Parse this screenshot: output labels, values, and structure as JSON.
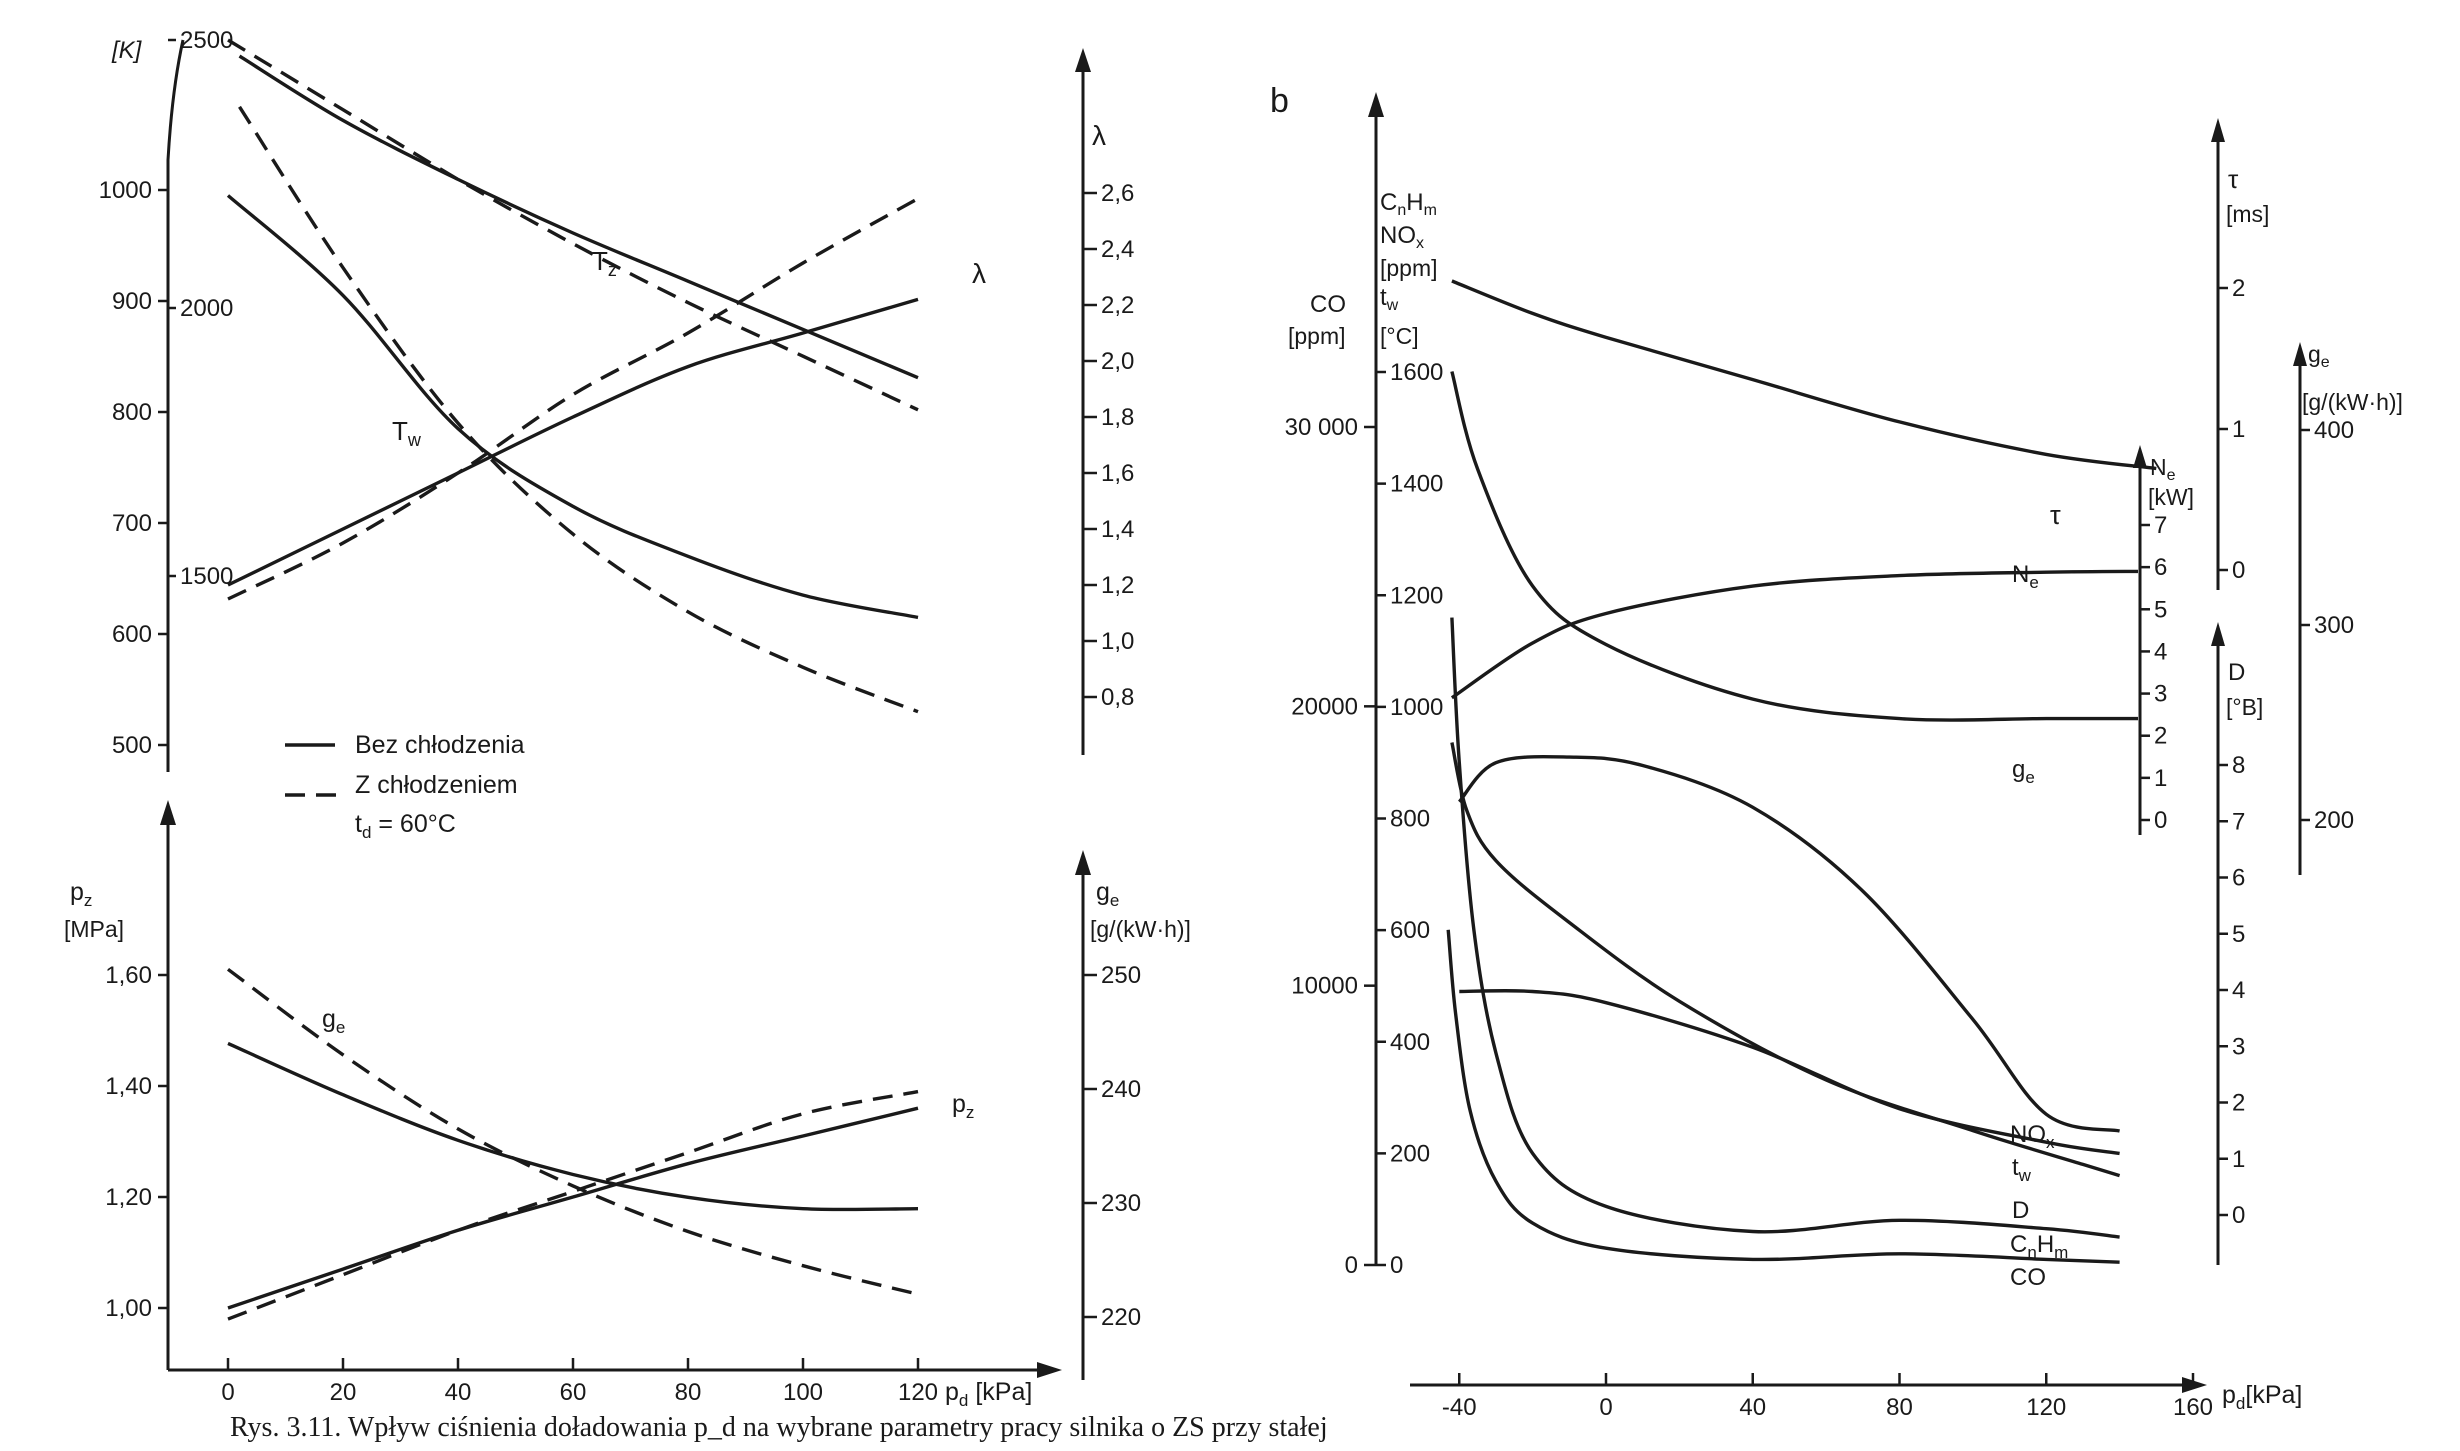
{
  "caption": "Rys. 3.11. Wpływ ciśnienia doładowania p_d na wybrane parametry pracy silnika o ZS przy stałej",
  "chart_data": [
    {
      "type": "line",
      "panel": "a-top",
      "xlabel": "p_d [kPa]",
      "xlim": [
        0,
        120
      ],
      "axes": {
        "left_primary": {
          "unit": "[K]",
          "ylim": [
            500,
            1100
          ],
          "ticks": [
            500,
            600,
            700,
            800,
            900,
            1000
          ]
        },
        "left_secondary": {
          "ticks": [
            1500,
            2000,
            2500
          ]
        },
        "right": {
          "label": "λ",
          "ylim": [
            0.6,
            2.8
          ],
          "ticks": [
            0.8,
            1.0,
            1.2,
            1.4,
            1.6,
            1.8,
            2.0,
            2.2,
            2.4,
            2.6
          ]
        }
      },
      "legend": {
        "position": "bottom-left",
        "entries": [
          "Bez chłodzenia",
          "Z chłodzeniem",
          "t_d = 60°C"
        ]
      },
      "series": [
        {
          "name": "T_z",
          "style": "solid",
          "axis": "left_secondary",
          "x": [
            2,
            20,
            40,
            60,
            80,
            100,
            120
          ],
          "y": [
            2470,
            2350,
            2240,
            2140,
            2050,
            1960,
            1870
          ]
        },
        {
          "name": "T_z",
          "style": "dashed",
          "axis": "left_secondary",
          "x": [
            0,
            20,
            40,
            60,
            80,
            100,
            120
          ],
          "y": [
            2500,
            2370,
            2240,
            2120,
            2010,
            1910,
            1810
          ]
        },
        {
          "name": "T_w",
          "style": "solid",
          "axis": "left_primary",
          "x": [
            0,
            20,
            40,
            60,
            80,
            100,
            120
          ],
          "y": [
            995,
            905,
            785,
            715,
            670,
            635,
            615
          ]
        },
        {
          "name": "T_w",
          "style": "dashed",
          "axis": "left_primary",
          "x": [
            2,
            20,
            40,
            60,
            80,
            100,
            120
          ],
          "y": [
            1075,
            930,
            790,
            690,
            620,
            570,
            530
          ]
        },
        {
          "name": "λ",
          "style": "solid",
          "axis": "right",
          "x": [
            0,
            20,
            40,
            60,
            80,
            100,
            120
          ],
          "y": [
            1.2,
            1.4,
            1.6,
            1.8,
            1.98,
            2.1,
            2.22
          ]
        },
        {
          "name": "λ",
          "style": "dashed",
          "axis": "right",
          "x": [
            0,
            20,
            40,
            60,
            80,
            100,
            120
          ],
          "y": [
            1.15,
            1.35,
            1.6,
            1.88,
            2.1,
            2.35,
            2.58
          ]
        }
      ]
    },
    {
      "type": "line",
      "panel": "a-bottom",
      "xlabel": "p_d [kPa]",
      "xticks": [
        0,
        20,
        40,
        60,
        80,
        100,
        120
      ],
      "xlim": [
        0,
        140
      ],
      "axes": {
        "left": {
          "label": "p_z",
          "unit": "[MPa]",
          "ylim": [
            0.95,
            1.7
          ],
          "ticks": [
            1.0,
            1.2,
            1.4,
            1.6
          ],
          "tick_labels": [
            "1,00",
            "1,20",
            "1,40",
            "1,60"
          ]
        },
        "right": {
          "label": "g_e",
          "unit": "[g/(kW·h)]",
          "ylim": [
            218.5,
            256
          ],
          "ticks": [
            220,
            230,
            240,
            250
          ]
        }
      },
      "series": [
        {
          "name": "g_e",
          "style": "solid",
          "axis": "right",
          "x": [
            0,
            20,
            40,
            60,
            80,
            100,
            120
          ],
          "y": [
            244,
            239.5,
            235.5,
            232.5,
            230.5,
            229.5,
            229.5
          ]
        },
        {
          "name": "g_e",
          "style": "dashed",
          "axis": "right",
          "x": [
            0,
            20,
            40,
            60,
            80,
            100,
            120
          ],
          "y": [
            250.5,
            243,
            236.5,
            231.5,
            227.5,
            224.5,
            222
          ]
        },
        {
          "name": "p_z",
          "style": "solid",
          "axis": "left",
          "x": [
            0,
            20,
            40,
            60,
            80,
            100,
            120
          ],
          "y": [
            1.0,
            1.07,
            1.14,
            1.2,
            1.26,
            1.31,
            1.36
          ]
        },
        {
          "name": "p_z",
          "style": "dashed",
          "axis": "left",
          "x": [
            0,
            20,
            40,
            60,
            80,
            100,
            120
          ],
          "y": [
            0.98,
            1.06,
            1.14,
            1.21,
            1.28,
            1.35,
            1.39
          ]
        }
      ]
    },
    {
      "type": "line",
      "panel": "b",
      "xlabel": "p_d [kPa]",
      "xticks": [
        -40,
        0,
        40,
        80,
        120,
        160
      ],
      "xlim": [
        -70,
        180
      ],
      "axes": {
        "co": {
          "label": "CO",
          "unit": "[ppm]",
          "ticks": [
            0,
            10000,
            20000,
            30000
          ],
          "tick_labels": [
            "0",
            "10000",
            "20000",
            "30 000"
          ]
        },
        "cnhm": {
          "label": "C_nH_m NO_x [ppm] t_w [°C]",
          "ticks": [
            0,
            200,
            400,
            600,
            800,
            1000,
            1200,
            1400,
            1600
          ]
        },
        "ne": {
          "label": "N_e",
          "unit": "[kW]",
          "ticks": [
            0,
            1,
            2,
            3,
            4,
            5,
            6,
            7
          ]
        },
        "tau": {
          "label": "τ",
          "unit": "[ms]",
          "ticks": [
            0,
            1,
            2
          ]
        },
        "d": {
          "label": "D",
          "unit": "[°B]",
          "ticks": [
            0,
            1,
            2,
            3,
            4,
            5,
            6,
            7,
            8
          ]
        },
        "ge": {
          "label": "g_e",
          "unit": "[g/(kW·h)]",
          "ticks": [
            200,
            300,
            400
          ]
        }
      },
      "series": [
        {
          "name": "τ",
          "axis": "tau",
          "x": [
            -42,
            -20,
            0,
            40,
            80,
            120,
            150
          ],
          "y": [
            2.05,
            1.82,
            1.65,
            1.35,
            1.05,
            0.82,
            0.72
          ]
        },
        {
          "name": "N_e",
          "axis": "ne",
          "x": [
            -42,
            -20,
            0,
            40,
            80,
            120,
            145
          ],
          "y": [
            2.9,
            4.2,
            4.9,
            5.55,
            5.8,
            5.88,
            5.9
          ]
        },
        {
          "name": "g_e",
          "axis": "ge",
          "x": [
            -42,
            -35,
            -20,
            0,
            40,
            80,
            120,
            145
          ],
          "y": [
            430,
            380,
            320,
            290,
            262,
            252,
            252,
            252
          ]
        },
        {
          "name": "NO_x",
          "axis": "cnhm",
          "x": [
            -40,
            -30,
            -10,
            10,
            40,
            70,
            100,
            120,
            140
          ],
          "y": [
            830,
            900,
            910,
            895,
            820,
            670,
            440,
            270,
            240
          ]
        },
        {
          "name": "t_w",
          "axis": "cnhm",
          "x": [
            -40,
            -20,
            0,
            40,
            80,
            120,
            140
          ],
          "y": [
            490,
            490,
            470,
            390,
            280,
            220,
            200
          ]
        },
        {
          "name": "D",
          "axis": "d",
          "x": [
            -42,
            -38,
            -30,
            -10,
            20,
            60,
            100,
            130,
            140
          ],
          "y": [
            8.4,
            7.2,
            6.3,
            5.2,
            3.8,
            2.4,
            1.5,
            0.9,
            0.7
          ]
        },
        {
          "name": "C_nH_m",
          "axis": "cnhm",
          "x": [
            -42,
            -40,
            -36,
            -30,
            -20,
            0,
            40,
            80,
            120,
            140
          ],
          "y": [
            1160,
            900,
            600,
            380,
            200,
            105,
            60,
            80,
            65,
            50
          ]
        },
        {
          "name": "CO",
          "axis": "co",
          "x": [
            -43,
            -41,
            -37,
            -30,
            -20,
            0,
            40,
            80,
            120,
            140
          ],
          "y": [
            12000,
            9000,
            5500,
            3000,
            1500,
            600,
            200,
            400,
            200,
            100
          ]
        }
      ]
    }
  ],
  "labels": {
    "panel_b": "b",
    "kelvin": "[K]",
    "t_z": "T",
    "t_z_sub": "z",
    "t_w": "T",
    "t_w_sub": "w",
    "lambda": "λ",
    "legend_solid": "Bez chłodzenia",
    "legend_dashed": "Z chłodzeniem",
    "legend_td": "t",
    "legend_td_sub": "d",
    "legend_td_val": " = 60°C",
    "pz_axis": "p",
    "pz_axis_sub": "z",
    "pz_unit": "[MPa]",
    "ge_axis": "g",
    "ge_axis_sub": "e",
    "ge_unit": "[g/(kW·h)]",
    "ge_curve": "g",
    "ge_curve_sub": "e",
    "pz_curve": "p",
    "pz_curve_sub": "z",
    "xlabel_a": "p",
    "xlabel_a_sub": "d",
    "xlabel_a_unit": " [kPa]",
    "co_axis": "CO",
    "co_unit": "[ppm]",
    "cnhm_axis_1": "C",
    "cnhm_axis_1_n": "n",
    "cnhm_axis_1_h": "H",
    "cnhm_axis_1_m": "m",
    "cnhm_axis_2": "NO",
    "cnhm_axis_2_sub": "x",
    "cnhm_axis_3": "[ppm]",
    "cnhm_axis_4": "t",
    "cnhm_axis_4_sub": "w",
    "cnhm_axis_5": "[°C]",
    "ne_axis": "N",
    "ne_axis_sub": "e",
    "ne_unit": "[kW]",
    "tau_axis": "τ",
    "tau_unit": "[ms]",
    "d_axis": "D",
    "d_unit": "[°B]",
    "geb_axis": "g",
    "geb_axis_sub": "e",
    "geb_unit": "[g/(kW·h)]",
    "b_tau": "τ",
    "b_ne": "N",
    "b_ne_sub": "e",
    "b_ge": "g",
    "b_ge_sub": "e",
    "b_nox": "NO",
    "b_nox_sub": "x",
    "b_tw": "t",
    "b_tw_sub": "w",
    "b_d": "D",
    "b_cnhm": "C",
    "b_cnhm_n": "n",
    "b_cnhm_h": "H",
    "b_cnhm_m": "m",
    "b_co": "CO",
    "xlabel_b": "p",
    "xlabel_b_sub": "d",
    "xlabel_b_unit": "[kPa]"
  }
}
